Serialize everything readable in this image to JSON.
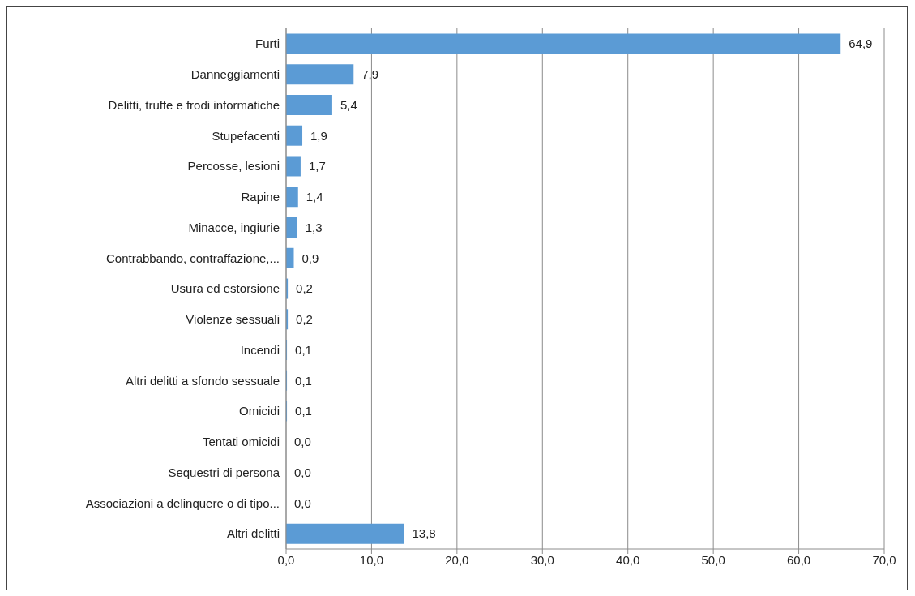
{
  "chart_data": {
    "type": "bar",
    "orientation": "horizontal",
    "categories": [
      "Furti",
      "Danneggiamenti",
      "Delitti, truffe e frodi informatiche",
      "Stupefacenti",
      "Percosse, lesioni",
      "Rapine",
      "Minacce, ingiurie",
      "Contrabbando, contraffazione,...",
      "Usura ed estorsione",
      "Violenze sessuali",
      "Incendi",
      "Altri delitti a sfondo sessuale",
      "Omicidi",
      "Tentati omicidi",
      "Sequestri di persona",
      "Associazioni a delinquere o di tipo...",
      "Altri delitti"
    ],
    "values": [
      64.9,
      7.9,
      5.4,
      1.9,
      1.7,
      1.4,
      1.3,
      0.9,
      0.2,
      0.2,
      0.1,
      0.1,
      0.1,
      0.0,
      0.0,
      0.0,
      13.8
    ],
    "value_labels": [
      "64,9",
      "7,9",
      "5,4",
      "1,9",
      "1,7",
      "1,4",
      "1,3",
      "0,9",
      "0,2",
      "0,2",
      "0,1",
      "0,1",
      "0,1",
      "0,0",
      "0,0",
      "0,0",
      "13,8"
    ],
    "color": "#5b9bd5",
    "xlim": [
      0,
      70
    ],
    "xticks": [
      {
        "value": 0,
        "label": "0,0"
      },
      {
        "value": 10,
        "label": "10,0"
      },
      {
        "value": 20,
        "label": "20,0"
      },
      {
        "value": 30,
        "label": "30,0"
      },
      {
        "value": 40,
        "label": "40,0"
      },
      {
        "value": 50,
        "label": "50,0"
      },
      {
        "value": 60,
        "label": "60,0"
      },
      {
        "value": 70,
        "label": "70,0"
      }
    ],
    "grid": "x"
  }
}
